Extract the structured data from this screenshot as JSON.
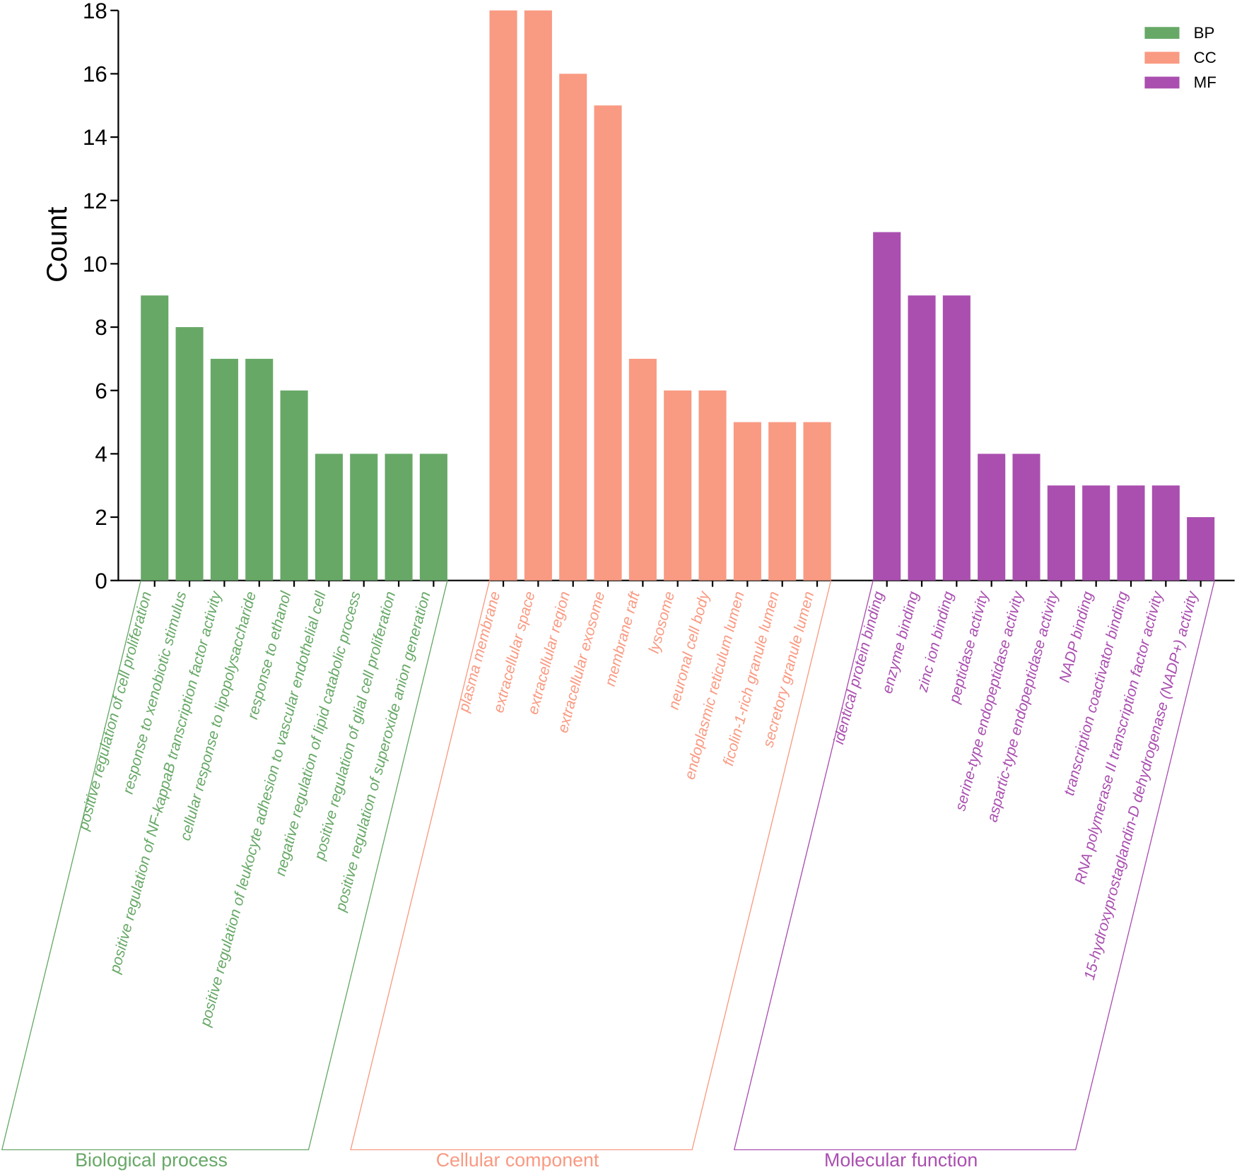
{
  "chart_data": {
    "type": "bar",
    "ylabel": "Count",
    "xlabel": "",
    "ylim": [
      0,
      18
    ],
    "yticks": [
      0,
      2,
      4,
      6,
      8,
      10,
      12,
      14,
      16,
      18
    ],
    "grid": false,
    "legend_position": "top-right",
    "groups": [
      {
        "key": "BP",
        "title": "Biological process",
        "color": "#67a867",
        "categories": [
          "positive regulation of cell proliferation",
          "response to xenobiotic stimulus",
          "positive regulation of NF-kappaB transcription factor activity",
          "cellular response to lipopolysaccharide",
          "response to ethanol",
          "positive regulation of leukocyte adhesion to vascular endothelial cell",
          "negative regulation of lipid catabolic process",
          "positive regulation of glial cell proliferation",
          "positive regulation of superoxide anion generation"
        ],
        "values": [
          9,
          8,
          7,
          7,
          6,
          4,
          4,
          4,
          4
        ]
      },
      {
        "key": "CC",
        "title": "Cellular component",
        "color": "#f99a82",
        "categories": [
          "plasma membrane",
          "extracellular space",
          "extracellular region",
          "extracellular exosome",
          "membrane raft",
          "lysosome",
          "neuronal cell body",
          "endoplasmic reticulum lumen",
          "ficolin-1-rich granule lumen",
          "secretory granule lumen"
        ],
        "values": [
          18,
          18,
          16,
          15,
          7,
          6,
          6,
          5,
          5,
          5
        ]
      },
      {
        "key": "MF",
        "title": "Molecular function",
        "color": "#aa4fb0",
        "categories": [
          "identical protein binding",
          "enzyme binding",
          "zinc ion binding",
          "peptidase activity",
          "serine-type endopeptidase activity",
          "aspartic-type endopeptidase activity",
          "NADP binding",
          "transcription coactivator binding",
          "RNA polymerase II transcription factor activity",
          "15-hydroxyprostaglandin-D dehydrogenase (NADP+) activity"
        ],
        "values": [
          11,
          9,
          9,
          4,
          4,
          3,
          3,
          3,
          3,
          2
        ]
      }
    ]
  }
}
